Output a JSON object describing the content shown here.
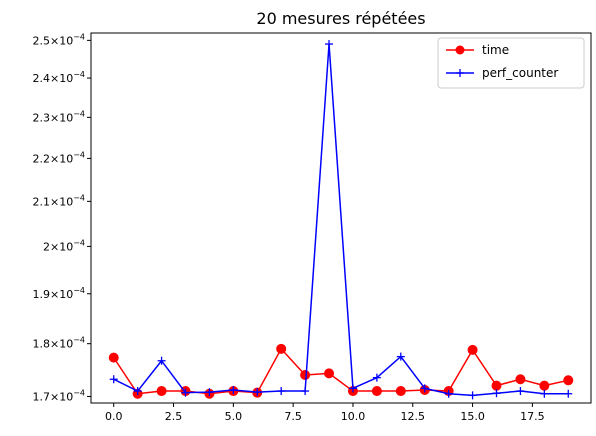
{
  "chart_data": {
    "type": "line",
    "title": "20 mesures répétées",
    "xlabel": "",
    "ylabel": "",
    "xlim": [
      -0.95,
      19.95
    ],
    "ylim": [
      0.0001688,
      0.000252
    ],
    "y_scale": "log",
    "grid": false,
    "legend_position": "top-right",
    "x": [
      0,
      1,
      2,
      3,
      4,
      5,
      6,
      7,
      8,
      9,
      10,
      11,
      12,
      13,
      14,
      15,
      16,
      17,
      18,
      19
    ],
    "x_ticks": [
      {
        "value": 0,
        "label": "0.0"
      },
      {
        "value": 2.5,
        "label": "2.5"
      },
      {
        "value": 5,
        "label": "5.0"
      },
      {
        "value": 7.5,
        "label": "7.5"
      },
      {
        "value": 10,
        "label": "10.0"
      },
      {
        "value": 12.5,
        "label": "12.5"
      },
      {
        "value": 15,
        "label": "15.0"
      },
      {
        "value": 17.5,
        "label": "17.5"
      }
    ],
    "y_ticks": [
      {
        "value": 0.00017,
        "mantissa": "1.7",
        "exponent": "−4"
      },
      {
        "value": 0.00018,
        "mantissa": "1.8",
        "exponent": "−4"
      },
      {
        "value": 0.00019,
        "mantissa": "1.9",
        "exponent": "−4"
      },
      {
        "value": 0.0002,
        "mantissa": "2",
        "exponent": "−4"
      },
      {
        "value": 0.00021,
        "mantissa": "2.1",
        "exponent": "−4"
      },
      {
        "value": 0.00022,
        "mantissa": "2.2",
        "exponent": "−4"
      },
      {
        "value": 0.00023,
        "mantissa": "2.3",
        "exponent": "−4"
      },
      {
        "value": 0.00024,
        "mantissa": "2.4",
        "exponent": "−4"
      },
      {
        "value": 0.00025,
        "mantissa": "2.5",
        "exponent": "−4"
      }
    ],
    "series": [
      {
        "name": "time",
        "color": "#ff0000",
        "marker": "circle",
        "values": [
          0.0001773,
          0.0001705,
          0.000171,
          0.000171,
          0.0001705,
          0.000171,
          0.0001707,
          0.000179,
          0.000174,
          0.0001743,
          0.000171,
          0.000171,
          0.000171,
          0.0001712,
          0.000171,
          0.0001788,
          0.000172,
          0.0001732,
          0.000172,
          0.000173
        ]
      },
      {
        "name": "perf_counter",
        "color": "#0000ff",
        "marker": "plus",
        "values": [
          0.0001732,
          0.000171,
          0.0001767,
          0.0001707,
          0.0001708,
          0.0001712,
          0.0001708,
          0.000171,
          0.000171,
          0.000249,
          0.0001715,
          0.0001735,
          0.0001775,
          0.0001715,
          0.0001705,
          0.0001702,
          0.0001706,
          0.000171,
          0.0001705,
          0.0001705
        ]
      }
    ]
  }
}
